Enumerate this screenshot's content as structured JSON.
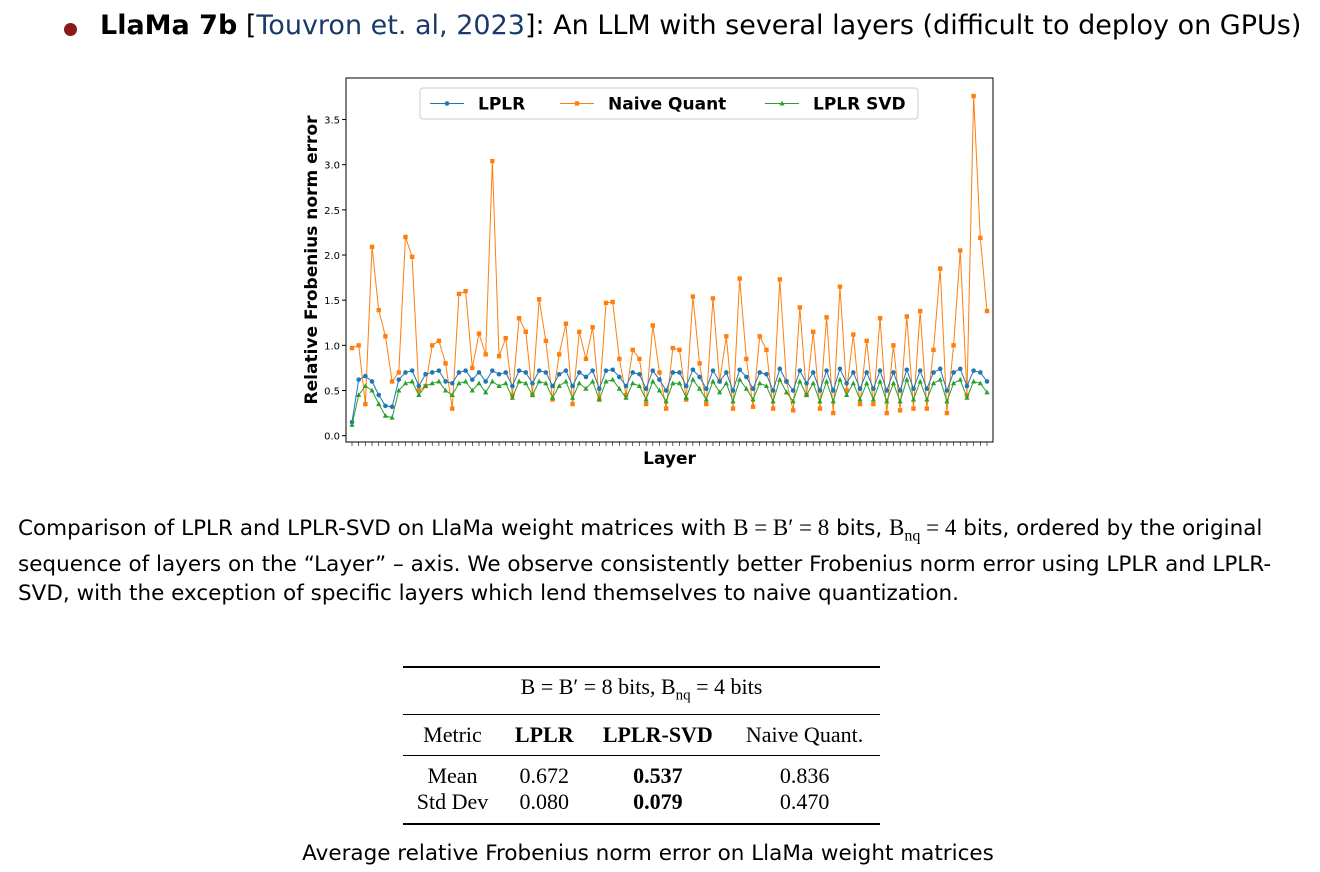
{
  "heading": {
    "parts": [
      "LlaMa 7b",
      " [",
      "Touvron et. al, 2023",
      "]: An LLM with several layers (difficult to deploy on GPUs)"
    ]
  },
  "chart_data": {
    "type": "line",
    "xlabel": "Layer",
    "ylabel": "Relative Frobenius norm error",
    "ylim": [
      -0.07,
      3.96
    ],
    "yticks": [
      {
        "value": 0,
        "label": "0.0"
      },
      0.5,
      {
        "value": 1,
        "label": "1.0"
      },
      1.5,
      {
        "value": 2,
        "label": "2.0"
      },
      2.5,
      {
        "value": 3,
        "label": "3.0"
      },
      3.5
    ],
    "legend": "top",
    "series": [
      {
        "name": "LPLR",
        "color": "#1f77b4",
        "marker": "circle",
        "values": [
          0.15,
          0.62,
          0.66,
          0.6,
          0.45,
          0.33,
          0.32,
          0.62,
          0.7,
          0.72,
          0.55,
          0.68,
          0.7,
          0.72,
          0.6,
          0.58,
          0.7,
          0.72,
          0.62,
          0.7,
          0.6,
          0.72,
          0.68,
          0.7,
          0.55,
          0.72,
          0.7,
          0.58,
          0.72,
          0.7,
          0.55,
          0.68,
          0.72,
          0.55,
          0.7,
          0.65,
          0.72,
          0.52,
          0.72,
          0.73,
          0.65,
          0.55,
          0.7,
          0.68,
          0.52,
          0.72,
          0.62,
          0.5,
          0.7,
          0.7,
          0.55,
          0.73,
          0.65,
          0.52,
          0.72,
          0.6,
          0.7,
          0.5,
          0.73,
          0.65,
          0.52,
          0.7,
          0.68,
          0.5,
          0.74,
          0.6,
          0.5,
          0.72,
          0.58,
          0.7,
          0.5,
          0.72,
          0.5,
          0.74,
          0.58,
          0.7,
          0.52,
          0.7,
          0.52,
          0.72,
          0.5,
          0.7,
          0.5,
          0.73,
          0.52,
          0.72,
          0.52,
          0.7,
          0.74,
          0.5,
          0.7,
          0.74,
          0.55,
          0.72,
          0.7,
          0.6
        ]
      },
      {
        "name": "Naive Quant",
        "color": "#ff7f0e",
        "marker": "square",
        "values": [
          0.97,
          1.0,
          0.35,
          2.09,
          1.39,
          1.1,
          0.6,
          0.7,
          2.2,
          1.98,
          0.5,
          0.55,
          1.0,
          1.05,
          0.8,
          0.3,
          1.57,
          1.6,
          0.75,
          1.13,
          0.9,
          3.04,
          0.88,
          1.08,
          0.45,
          1.3,
          1.15,
          0.45,
          1.51,
          1.05,
          0.4,
          0.9,
          1.24,
          0.35,
          1.15,
          0.85,
          1.2,
          0.4,
          1.47,
          1.48,
          0.85,
          0.45,
          0.95,
          0.85,
          0.35,
          1.22,
          0.7,
          0.3,
          0.97,
          0.95,
          0.4,
          1.54,
          0.8,
          0.35,
          1.52,
          0.6,
          1.1,
          0.3,
          1.74,
          0.85,
          0.32,
          1.1,
          0.95,
          0.3,
          1.73,
          0.6,
          0.28,
          1.42,
          0.45,
          1.15,
          0.3,
          1.31,
          0.25,
          1.65,
          0.5,
          1.12,
          0.35,
          1.05,
          0.35,
          1.3,
          0.25,
          1.0,
          0.28,
          1.32,
          0.3,
          1.38,
          0.3,
          0.95,
          1.85,
          0.25,
          1.0,
          2.05,
          0.45,
          3.76,
          2.19,
          1.38
        ]
      },
      {
        "name": "LPLR SVD",
        "color": "#2ca02c",
        "marker": "triangle",
        "values": [
          0.12,
          0.45,
          0.55,
          0.5,
          0.35,
          0.22,
          0.2,
          0.5,
          0.58,
          0.6,
          0.45,
          0.55,
          0.58,
          0.6,
          0.5,
          0.45,
          0.58,
          0.6,
          0.5,
          0.58,
          0.48,
          0.6,
          0.55,
          0.58,
          0.42,
          0.6,
          0.58,
          0.45,
          0.6,
          0.58,
          0.42,
          0.55,
          0.6,
          0.42,
          0.58,
          0.52,
          0.6,
          0.4,
          0.6,
          0.62,
          0.52,
          0.42,
          0.58,
          0.55,
          0.4,
          0.6,
          0.5,
          0.38,
          0.58,
          0.58,
          0.42,
          0.62,
          0.52,
          0.4,
          0.6,
          0.48,
          0.58,
          0.38,
          0.62,
          0.52,
          0.4,
          0.58,
          0.55,
          0.38,
          0.62,
          0.48,
          0.38,
          0.6,
          0.45,
          0.58,
          0.38,
          0.6,
          0.38,
          0.62,
          0.45,
          0.58,
          0.4,
          0.58,
          0.4,
          0.6,
          0.38,
          0.58,
          0.38,
          0.62,
          0.4,
          0.6,
          0.4,
          0.58,
          0.62,
          0.38,
          0.58,
          0.62,
          0.42,
          0.6,
          0.58,
          0.48
        ]
      }
    ]
  },
  "caption": {
    "parts": [
      "Comparison of LPLR and LPLR-SVD on LlaMa weight matrices with ",
      "B = B′ = 8",
      " bits, ",
      "B",
      "nq",
      " = 4",
      " bits, ordered by the original sequence of layers on the “Layer” – axis. We observe consistently better Frobenius norm error using LPLR and LPLR-SVD, with the exception of specific layers which lend themselves to naive quantization."
    ]
  },
  "table": {
    "title": [
      "B = B′ = 8",
      " bits, ",
      "B",
      "nq",
      " = 4",
      " bits"
    ],
    "header": [
      "Metric",
      "LPLR",
      "LPLR-SVD",
      "Naive Quant."
    ],
    "rows": [
      [
        "Mean",
        "0.672",
        "0.537",
        "0.836"
      ],
      [
        "Std Dev",
        "0.080",
        "0.079",
        "0.470"
      ]
    ],
    "caption": "Average relative Frobenius norm error on LlaMa weight matrices"
  }
}
